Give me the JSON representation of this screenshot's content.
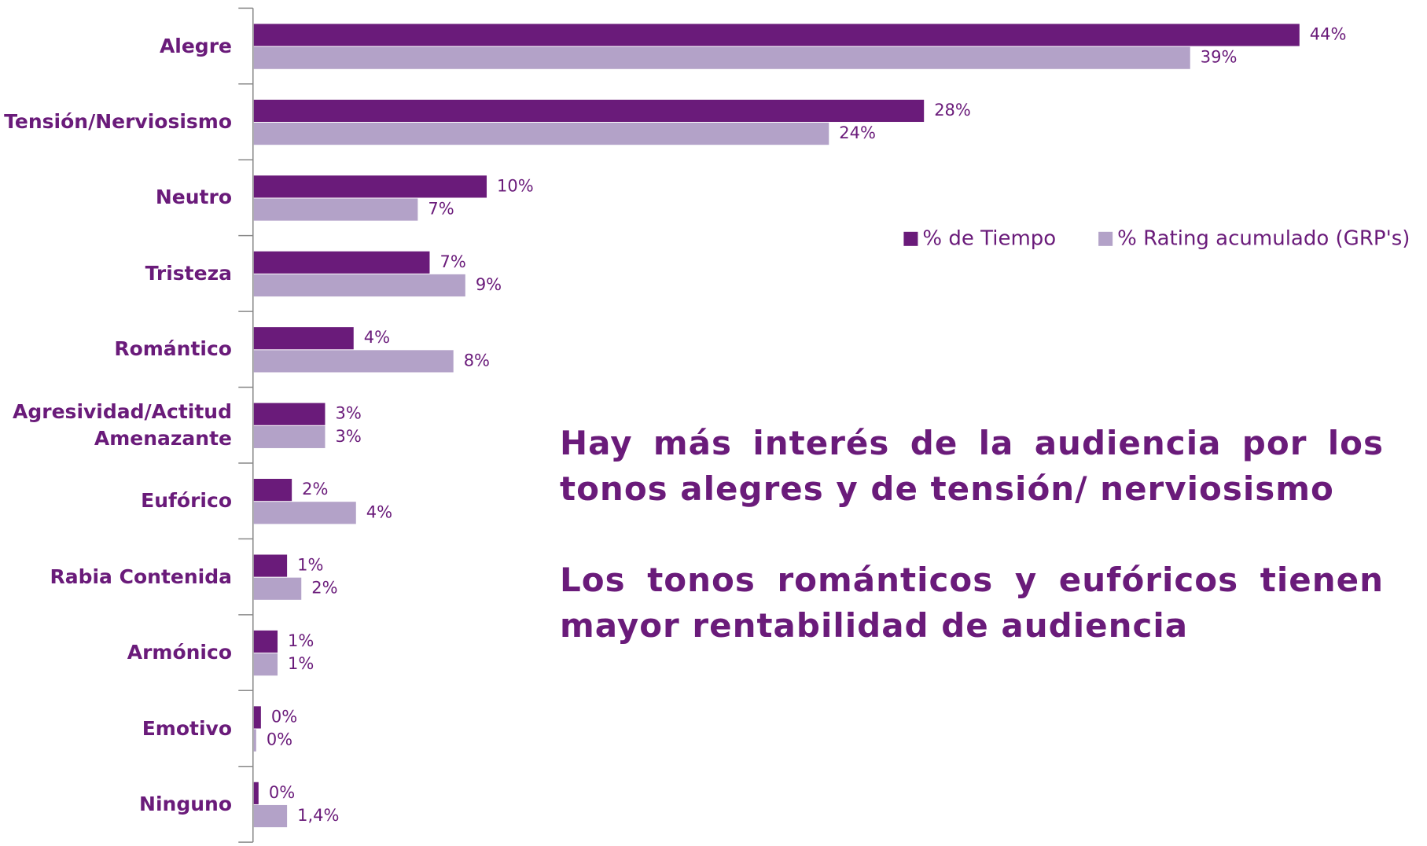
{
  "chart_data": {
    "type": "hbar",
    "categories": [
      "Alegre",
      "Tensión/Nerviosismo",
      "Neutro",
      "Tristeza",
      "Romántico",
      "Agresividad/Actitud Amenazante",
      "Eufórico",
      "Rabia Contenida",
      "Armónico",
      "Emotivo",
      "Ninguno"
    ],
    "series": [
      {
        "name": "% de Tiempo",
        "color": "#6a1b7a",
        "values": [
          44,
          28.2,
          9.8,
          7.4,
          4.2,
          3,
          1.6,
          1.4,
          1,
          0.3,
          0.2
        ],
        "value_labels": [
          "44%",
          "28%",
          "10%",
          "7%",
          "4%",
          "3%",
          "2%",
          "1%",
          "1%",
          "0%",
          "0%"
        ]
      },
      {
        "name": "% Rating acumulado (GRP's)",
        "color": "#b3a2c8",
        "values": [
          39.4,
          24.2,
          6.9,
          8.9,
          8.4,
          3,
          4.3,
          2,
          1,
          0.1,
          1.4
        ],
        "value_labels": [
          "39%",
          "24%",
          "7%",
          "9%",
          "8%",
          "3%",
          "4%",
          "2%",
          "1%",
          "0%",
          "1,4%"
        ]
      }
    ],
    "xlim": [
      0,
      44
    ],
    "annotations": [
      "Hay más interés de la audiencia por los tonos alegres y de tensión/ nerviosismo",
      "Los tonos románticos y eufóricos tienen mayor rentabilidad de audiencia"
    ]
  }
}
